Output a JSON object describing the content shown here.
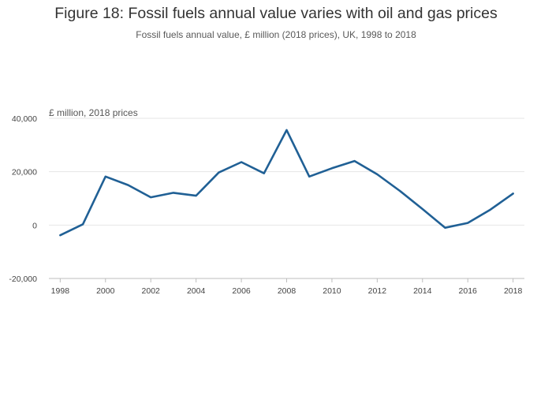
{
  "title": "Figure 18: Fossil fuels annual value varies with oil and gas prices",
  "subtitle": "Fossil fuels annual value, £ million (2018 prices), UK, 1998 to 2018",
  "colors": {
    "line": "#206095",
    "grid": "#e6e6e6",
    "axis": "#bdbdbd"
  },
  "chart_data": {
    "type": "line",
    "title": "Figure 18: Fossil fuels annual value varies with oil and gas prices",
    "subtitle": "Fossil fuels annual value, £ million (2018 prices), UK, 1998 to 2018",
    "ylabel": "£ million, 2018 prices",
    "xlabel": "",
    "x": [
      1998,
      1999,
      2000,
      2001,
      2002,
      2003,
      2004,
      2005,
      2006,
      2007,
      2008,
      2009,
      2010,
      2011,
      2012,
      2013,
      2014,
      2015,
      2016,
      2017,
      2018
    ],
    "series": [
      {
        "name": "Fossil fuels annual value",
        "values": [
          -3800,
          300,
          18200,
          15000,
          10400,
          12100,
          11000,
          19700,
          23600,
          19400,
          35600,
          18200,
          21300,
          24000,
          19000,
          12800,
          6000,
          -1000,
          800,
          5800,
          11800
        ]
      }
    ],
    "xlim": [
      1997.5,
      2018.5
    ],
    "ylim": [
      -20000,
      40000
    ],
    "yticks": [
      -20000,
      0,
      20000,
      40000
    ],
    "ytick_labels": [
      "-20,000",
      "0",
      "20,000",
      "40,000"
    ],
    "xticks": [
      1998,
      2000,
      2002,
      2004,
      2006,
      2008,
      2010,
      2012,
      2014,
      2016,
      2018
    ],
    "xtick_labels": [
      "1998",
      "2000",
      "2002",
      "2004",
      "2006",
      "2008",
      "2010",
      "2012",
      "2014",
      "2016",
      "2018"
    ],
    "grid": true
  }
}
